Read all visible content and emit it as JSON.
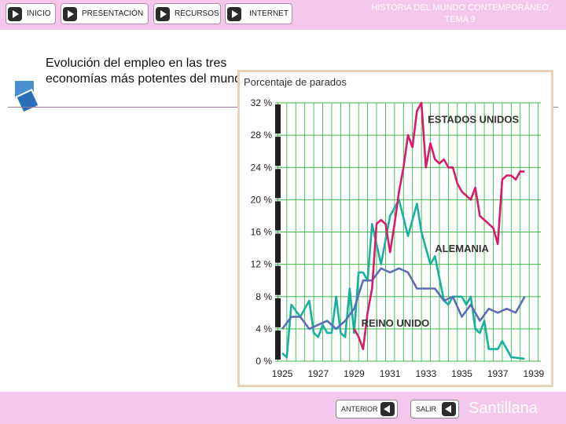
{
  "nav": {
    "inicio": "INICIO",
    "presentacion": "PRESENTACIÓN",
    "recursos": "RECURSOS",
    "internet": "INTERNET"
  },
  "header": {
    "line1": "HISTORIA DEL MUNDO CONTEMPORÁNEO",
    "line2": "TEMA 9"
  },
  "slide": {
    "heading": "Evolución del empleo en las tres economías más potentes del mundo"
  },
  "footer": {
    "anterior": "ANTERIOR",
    "salir": "SALIR",
    "brand": "Santillana"
  },
  "colors": {
    "bar": "#f4c8ec",
    "usa": "#d81b6a",
    "germany": "#1ab0a0",
    "uk": "#5b6db5",
    "grid": "#3db84a"
  },
  "chart_data": {
    "type": "line",
    "ylabel": "Porcentaje de parados",
    "ylim": [
      0,
      32
    ],
    "yticks": [
      "0 %",
      "4 %",
      "8 %",
      "12 %",
      "16 %",
      "20 %",
      "24 %",
      "28 %",
      "32 %"
    ],
    "xticks": [
      "1925",
      "1927",
      "1929",
      "1931",
      "1933",
      "1935",
      "1937",
      "1939"
    ],
    "xlim": [
      1924.6,
      1939.4
    ],
    "grid": true,
    "series": [
      {
        "name": "ESTADOS UNIDOS",
        "points": [
          [
            1929.0,
            4.0
          ],
          [
            1929.25,
            3.0
          ],
          [
            1929.5,
            1.5
          ],
          [
            1929.75,
            6.0
          ],
          [
            1930.0,
            9.0
          ],
          [
            1930.25,
            17.0
          ],
          [
            1930.5,
            17.5
          ],
          [
            1930.75,
            17.0
          ],
          [
            1931.0,
            13.5
          ],
          [
            1931.25,
            17.0
          ],
          [
            1931.5,
            21.0
          ],
          [
            1931.75,
            24.0
          ],
          [
            1932.0,
            28.0
          ],
          [
            1932.25,
            26.5
          ],
          [
            1932.5,
            31.0
          ],
          [
            1932.75,
            32.0
          ],
          [
            1933.0,
            24.0
          ],
          [
            1933.25,
            27.0
          ],
          [
            1933.5,
            25.0
          ],
          [
            1933.75,
            24.5
          ],
          [
            1934.0,
            25.0
          ],
          [
            1934.25,
            24.0
          ],
          [
            1934.5,
            24.0
          ],
          [
            1934.75,
            22.0
          ],
          [
            1935.0,
            21.0
          ],
          [
            1935.25,
            20.5
          ],
          [
            1935.5,
            20.0
          ],
          [
            1935.75,
            21.5
          ],
          [
            1936.0,
            18.0
          ],
          [
            1936.25,
            17.5
          ],
          [
            1936.5,
            17.0
          ],
          [
            1936.75,
            16.5
          ],
          [
            1937.0,
            14.5
          ],
          [
            1937.25,
            22.5
          ],
          [
            1937.5,
            23.0
          ],
          [
            1937.75,
            23.0
          ],
          [
            1938.0,
            22.5
          ],
          [
            1938.25,
            23.5
          ],
          [
            1938.5,
            23.5
          ]
        ]
      },
      {
        "name": "ALEMANIA",
        "points": [
          [
            1925.0,
            1.0
          ],
          [
            1925.25,
            0.5
          ],
          [
            1925.5,
            7.0
          ],
          [
            1926.0,
            5.5
          ],
          [
            1926.5,
            7.5
          ],
          [
            1926.75,
            3.5
          ],
          [
            1927.0,
            3.0
          ],
          [
            1927.25,
            4.5
          ],
          [
            1927.5,
            3.5
          ],
          [
            1927.75,
            3.5
          ],
          [
            1928.0,
            8.0
          ],
          [
            1928.25,
            3.5
          ],
          [
            1928.5,
            3.0
          ],
          [
            1928.75,
            9.0
          ],
          [
            1929.0,
            3.5
          ],
          [
            1929.25,
            11.0
          ],
          [
            1929.5,
            11.0
          ],
          [
            1929.75,
            10.0
          ],
          [
            1930.0,
            17.0
          ],
          [
            1930.5,
            12.0
          ],
          [
            1931.0,
            18.0
          ],
          [
            1931.5,
            20.0
          ],
          [
            1932.0,
            15.5
          ],
          [
            1932.5,
            19.5
          ],
          [
            1932.75,
            16.0
          ],
          [
            1933.25,
            12.0
          ],
          [
            1933.5,
            13.0
          ],
          [
            1934.0,
            7.5
          ],
          [
            1934.25,
            7.0
          ],
          [
            1934.5,
            8.0
          ],
          [
            1935.0,
            8.0
          ],
          [
            1935.25,
            7.0
          ],
          [
            1935.5,
            8.0
          ],
          [
            1935.75,
            4.0
          ],
          [
            1936.0,
            3.5
          ],
          [
            1936.25,
            5.0
          ],
          [
            1936.5,
            1.5
          ],
          [
            1937.0,
            1.5
          ],
          [
            1937.25,
            2.5
          ],
          [
            1937.75,
            0.5
          ],
          [
            1938.5,
            0.3
          ]
        ]
      },
      {
        "name": "REINO UNIDO",
        "points": [
          [
            1925.0,
            4.0
          ],
          [
            1925.5,
            5.5
          ],
          [
            1926.0,
            5.5
          ],
          [
            1926.5,
            4.0
          ],
          [
            1927.0,
            4.5
          ],
          [
            1927.5,
            5.0
          ],
          [
            1928.0,
            4.0
          ],
          [
            1928.5,
            5.0
          ],
          [
            1929.0,
            6.5
          ],
          [
            1929.5,
            10.0
          ],
          [
            1930.0,
            10.0
          ],
          [
            1930.5,
            11.5
          ],
          [
            1931.0,
            11.0
          ],
          [
            1931.5,
            11.5
          ],
          [
            1932.0,
            11.0
          ],
          [
            1932.5,
            9.0
          ],
          [
            1933.0,
            9.0
          ],
          [
            1933.5,
            9.0
          ],
          [
            1934.0,
            7.5
          ],
          [
            1934.5,
            8.0
          ],
          [
            1935.0,
            5.5
          ],
          [
            1935.5,
            7.0
          ],
          [
            1936.0,
            5.0
          ],
          [
            1936.5,
            6.5
          ],
          [
            1937.0,
            6.0
          ],
          [
            1937.5,
            6.5
          ],
          [
            1938.0,
            6.0
          ],
          [
            1938.5,
            8.0
          ]
        ]
      }
    ]
  }
}
